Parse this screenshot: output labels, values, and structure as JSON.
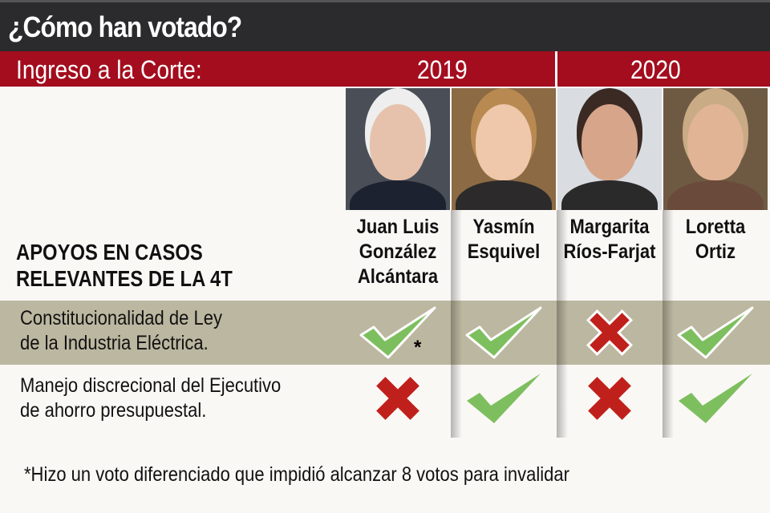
{
  "header": {
    "title": "¿Cómo han votado?"
  },
  "entry_bar": {
    "label": "Ingreso a la Corte:",
    "years": [
      "2019",
      "2020"
    ]
  },
  "section_title": [
    "APOYOS EN CASOS",
    "RELEVANTES DE LA 4T"
  ],
  "justices": [
    {
      "name": [
        "Juan Luis",
        "González",
        "Alcántara"
      ],
      "year": "2019"
    },
    {
      "name": [
        "Yasmín",
        "Esquivel"
      ],
      "year": "2019"
    },
    {
      "name": [
        "Margarita",
        "Ríos-Farjat"
      ],
      "year": "2020"
    },
    {
      "name": [
        "Loretta",
        "Ortiz"
      ],
      "year": "2020"
    }
  ],
  "cases": [
    {
      "label": [
        "Constitucionalidad de Ley",
        "de la Industria Eléctrica."
      ],
      "votes": [
        "check",
        "check",
        "cross",
        "check"
      ],
      "notes": [
        "*",
        "",
        "",
        ""
      ]
    },
    {
      "label": [
        "Manejo discrecional del Ejecutivo",
        "de ahorro presupuestal."
      ],
      "votes": [
        "cross",
        "check",
        "cross",
        "check"
      ],
      "notes": [
        "",
        "",
        "",
        ""
      ]
    }
  ],
  "footnote": "*Hizo un voto diferenciado que impidió alcanzar 8 votos para invalidar",
  "colors": {
    "header": "#2b2b2d",
    "red_bar": "#a30d1e",
    "band": "#bcb7a0",
    "check": "#7dbf5e",
    "cross": "#c0201b"
  }
}
